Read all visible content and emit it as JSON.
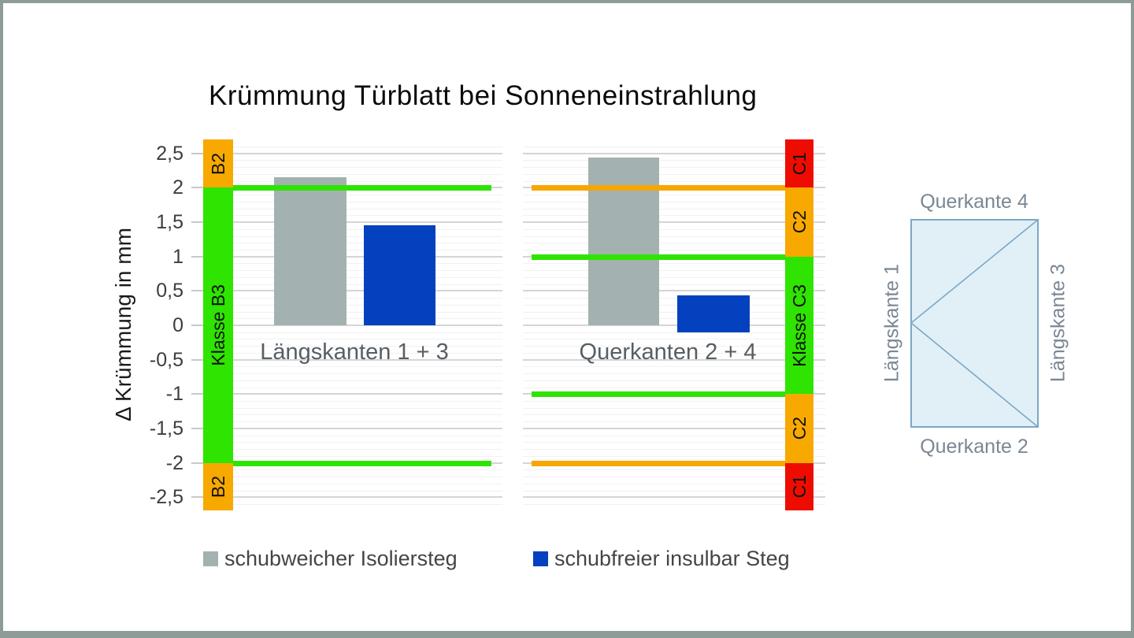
{
  "title": "Krümmung Türblatt bei Sonneneinstrahlung",
  "frame_color": "#8d9c97",
  "chart_data": {
    "type": "bar",
    "title": "Krümmung Türblatt bei Sonneneinstrahlung",
    "ylabel": "Δ Krümmung in mm",
    "ylim": [
      -2.7,
      2.7
    ],
    "grid": {
      "major_step": 0.5,
      "minor_step": 0.1,
      "gridlines": "on"
    },
    "y_ticks": [
      {
        "label": "2,5",
        "value": 2.5
      },
      {
        "label": "2",
        "value": 2.0
      },
      {
        "label": "1,5",
        "value": 1.5
      },
      {
        "label": "1",
        "value": 1.0
      },
      {
        "label": "0,5",
        "value": 0.5
      },
      {
        "label": "0",
        "value": 0.0
      },
      {
        "label": "-0,5",
        "value": -0.5
      },
      {
        "label": "-1",
        "value": -1.0
      },
      {
        "label": "-1,5",
        "value": -1.5
      },
      {
        "label": "-2",
        "value": -2.0
      },
      {
        "label": "-2,5",
        "value": -2.5
      }
    ],
    "categories": [
      "Längskanten 1 + 3",
      "Querkanten 2 + 4"
    ],
    "series": [
      {
        "name": "schubweicher Isoliersteg",
        "color": "#a3b2b0",
        "values": [
          2.15,
          2.44
        ]
      },
      {
        "name": "schubfreier insulbar Steg",
        "color": "#0441be",
        "values": [
          1.45,
          0.44
        ]
      }
    ],
    "groups": [
      {
        "label": "Längskanten 1 + 3",
        "bars": [
          {
            "series": 0,
            "from": 0,
            "to": 2.15
          },
          {
            "series": 1,
            "from": 0,
            "to": 1.45
          }
        ],
        "limit_lines": [
          {
            "value": 2.0,
            "color": "#2ee400"
          },
          {
            "value": -2.0,
            "color": "#2ee400"
          }
        ],
        "class_bands": {
          "side": "left",
          "bands": [
            {
              "label": "B2",
              "from": 2.0,
              "to": 2.7,
              "color": "#f8a900"
            },
            {
              "label": "Klasse B3",
              "from": -2.0,
              "to": 2.0,
              "color": "#2ee400"
            },
            {
              "label": "B2",
              "from": -2.7,
              "to": -2.0,
              "color": "#f8a900"
            }
          ]
        }
      },
      {
        "label": "Querkanten 2 + 4",
        "bars": [
          {
            "series": 0,
            "from": 0,
            "to": 2.44
          },
          {
            "series": 1,
            "from": -0.1,
            "to": 0.44
          }
        ],
        "limit_lines": [
          {
            "value": 2.0,
            "color": "#f7a600"
          },
          {
            "value": 1.0,
            "color": "#2ee400"
          },
          {
            "value": -1.0,
            "color": "#2ee400"
          },
          {
            "value": -2.0,
            "color": "#f7a600"
          }
        ],
        "class_bands": {
          "side": "right",
          "bands": [
            {
              "label": "C1",
              "from": 2.0,
              "to": 2.7,
              "color": "#ee0c00"
            },
            {
              "label": "C2",
              "from": 1.0,
              "to": 2.0,
              "color": "#f8a900"
            },
            {
              "label": "Klasse C3",
              "from": -1.0,
              "to": 1.0,
              "color": "#2ee400"
            },
            {
              "label": "C2",
              "from": -2.0,
              "to": -1.0,
              "color": "#f8a900"
            },
            {
              "label": "C1",
              "from": -2.7,
              "to": -2.0,
              "color": "#ee0c00"
            }
          ]
        }
      }
    ],
    "legend": [
      {
        "label": "schubweicher Isoliersteg",
        "color": "#a3b2b0"
      },
      {
        "label": "schubfreier insulbar Steg",
        "color": "#0441be"
      }
    ],
    "legend_position": "bottom"
  },
  "diagram": {
    "top_label": "Querkante 4",
    "bottom_label": "Querkante 2",
    "left_label": "Längskante 1",
    "right_label": "Längskante 3",
    "fill": "#e1f0f7",
    "stroke": "#7ca7c6",
    "label_color": "#7a8794"
  }
}
